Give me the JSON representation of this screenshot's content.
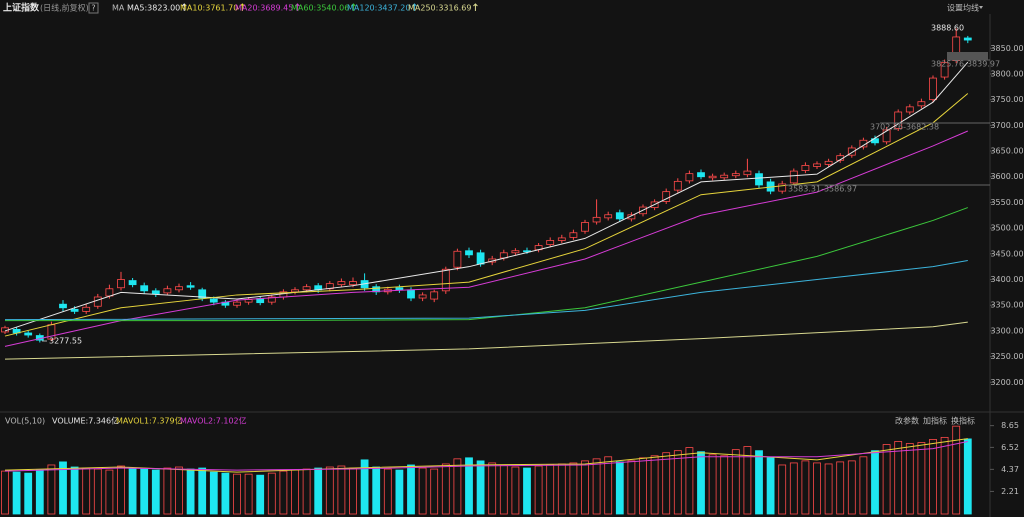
{
  "chart_data": [
    {
      "type": "candlestick",
      "title": "上证指数",
      "subtitle": "(日线,前复权)",
      "help": "?",
      "ma_label": "MA",
      "settings": "设置均线",
      "up_color": "#ff4a4a",
      "down_color": "#1ee6f0",
      "open": [
        3298,
        3303,
        3296,
        3291,
        3284,
        3352,
        3342,
        3338,
        3348,
        3368,
        3384,
        3398,
        3388,
        3378,
        3374,
        3380,
        3388,
        3380,
        3362,
        3356,
        3350,
        3356,
        3363,
        3356,
        3366,
        3376,
        3380,
        3388,
        3382,
        3390,
        3390,
        3398,
        3386,
        3376,
        3384,
        3380,
        3364,
        3362,
        3378,
        3424,
        3456,
        3452,
        3434,
        3442,
        3452,
        3456,
        3458,
        3468,
        3476,
        3482,
        3494,
        3512,
        3520,
        3530,
        3518,
        3528,
        3540,
        3552,
        3574,
        3592,
        3608,
        3598,
        3598,
        3602,
        3604,
        3606,
        3590,
        3572,
        3588,
        3612,
        3620,
        3624,
        3632,
        3642,
        3658,
        3674,
        3668,
        3694,
        3726,
        3738,
        3750,
        3794,
        3826,
        3870
      ],
      "high": [
        3310,
        3307,
        3300,
        3295,
        3318,
        3360,
        3348,
        3352,
        3372,
        3390,
        3415,
        3403,
        3394,
        3383,
        3388,
        3392,
        3395,
        3384,
        3367,
        3360,
        3360,
        3366,
        3368,
        3371,
        3381,
        3385,
        3391,
        3393,
        3397,
        3402,
        3404,
        3412,
        3391,
        3386,
        3390,
        3385,
        3375,
        3380,
        3425,
        3460,
        3462,
        3458,
        3446,
        3458,
        3461,
        3462,
        3471,
        3482,
        3487,
        3497,
        3516,
        3556,
        3532,
        3536,
        3531,
        3546,
        3556,
        3577,
        3597,
        3612,
        3614,
        3606,
        3608,
        3612,
        3635,
        3612,
        3596,
        3592,
        3616,
        3628,
        3630,
        3635,
        3646,
        3661,
        3676,
        3680,
        3697,
        3731,
        3741,
        3752,
        3797,
        3828,
        3888.6,
        3874
      ],
      "low": [
        3294,
        3291,
        3287,
        3277.55,
        3280,
        3338,
        3333,
        3333,
        3343,
        3363,
        3379,
        3385,
        3372,
        3366,
        3369,
        3375,
        3380,
        3358,
        3350,
        3345,
        3345,
        3351,
        3350,
        3351,
        3361,
        3371,
        3375,
        3374,
        3377,
        3385,
        3385,
        3378,
        3370,
        3371,
        3374,
        3358,
        3358,
        3356,
        3372,
        3418,
        3442,
        3425,
        3428,
        3437,
        3447,
        3450,
        3453,
        3463,
        3471,
        3477,
        3489,
        3507,
        3515,
        3512,
        3513,
        3523,
        3535,
        3547,
        3569,
        3587,
        3595,
        3593,
        3593,
        3597,
        3599,
        3578,
        3566,
        3567,
        3583,
        3607,
        3615,
        3619,
        3627,
        3637,
        3653,
        3661,
        3663,
        3689,
        3721,
        3733,
        3745,
        3789,
        3821,
        3860
      ],
      "close": [
        3306,
        3296,
        3292,
        3282,
        3312,
        3345,
        3338,
        3346,
        3366,
        3382,
        3400,
        3390,
        3378,
        3372,
        3382,
        3386,
        3385,
        3364,
        3356,
        3350,
        3356,
        3361,
        3355,
        3366,
        3376,
        3380,
        3386,
        3380,
        3392,
        3396,
        3396,
        3384,
        3376,
        3381,
        3380,
        3364,
        3370,
        3376,
        3420,
        3455,
        3448,
        3430,
        3440,
        3452,
        3456,
        3455,
        3466,
        3476,
        3481,
        3491,
        3511,
        3521,
        3526,
        3518,
        3526,
        3541,
        3551,
        3571,
        3591,
        3606,
        3600,
        3601,
        3603,
        3606,
        3611,
        3584,
        3572,
        3586,
        3611,
        3622,
        3625,
        3630,
        3641,
        3656,
        3671,
        3666,
        3691,
        3726,
        3736,
        3746,
        3792,
        3822,
        3872,
        3866
      ],
      "series": [
        {
          "name": "MA5:3823.00",
          "color": "#e8e8e8",
          "x": [
            0,
            10,
            20,
            30,
            40,
            50,
            60,
            70,
            80,
            83
          ],
          "values": [
            3300,
            3375,
            3362,
            3388,
            3425,
            3480,
            3590,
            3605,
            3745,
            3823
          ]
        },
        {
          "name": "MA10:3761.70",
          "color": "#e6d43c",
          "x": [
            0,
            10,
            20,
            30,
            40,
            50,
            60,
            70,
            80,
            83
          ],
          "values": [
            3290,
            3345,
            3370,
            3380,
            3395,
            3460,
            3565,
            3590,
            3705,
            3762
          ]
        },
        {
          "name": "MA20:3689.45",
          "color": "#d63cd6",
          "x": [
            0,
            10,
            20,
            30,
            40,
            50,
            60,
            70,
            80,
            83
          ],
          "values": [
            3270,
            3320,
            3360,
            3375,
            3385,
            3440,
            3525,
            3570,
            3660,
            3689
          ]
        },
        {
          "name": "MA60:3540.06",
          "color": "#3cc83c",
          "x": [
            0,
            20,
            40,
            50,
            60,
            70,
            80,
            83
          ],
          "values": [
            3320,
            3320,
            3322,
            3345,
            3395,
            3445,
            3515,
            3540
          ]
        },
        {
          "name": "MA120:3437.20",
          "color": "#3cb4dc",
          "x": [
            0,
            40,
            50,
            60,
            70,
            80,
            83
          ],
          "values": [
            3322,
            3325,
            3340,
            3375,
            3400,
            3425,
            3437
          ]
        },
        {
          "name": "MA250:3316.69",
          "color": "#d8d890",
          "x": [
            0,
            40,
            60,
            80,
            83
          ],
          "values": [
            3245,
            3265,
            3285,
            3308,
            3317
          ]
        }
      ],
      "annotations": [
        "3888.60",
        "3825.76-3839.97",
        "3702.26-3682.38",
        "3583.31-3586.97",
        "3277.55"
      ],
      "ylim": [
        3150,
        3905
      ],
      "yticks": [
        {
          "value": 3200,
          "label": "3200.00"
        },
        {
          "value": 3250,
          "label": "3250.00"
        },
        {
          "value": 3300,
          "label": "3300.00"
        },
        {
          "value": 3350,
          "label": "3350.00"
        },
        {
          "value": 3400,
          "label": "3400.00"
        },
        {
          "value": 3450,
          "label": "3450.00"
        },
        {
          "value": 3500,
          "label": "3500.00"
        },
        {
          "value": 3550,
          "label": "3550.00"
        },
        {
          "value": 3600,
          "label": "3600.00"
        },
        {
          "value": 3650,
          "label": "3650.00"
        },
        {
          "value": 3700,
          "label": "3700.00"
        },
        {
          "value": 3750,
          "label": "3750.00"
        },
        {
          "value": 3800,
          "label": "3800.00"
        },
        {
          "value": 3850,
          "label": "3850.00"
        }
      ]
    },
    {
      "type": "bar",
      "title": "VOL(5,10)",
      "latest": "VOLUME:7.346亿",
      "buttons": [
        "改参数",
        "加指标",
        "换指标"
      ],
      "values": [
        4.2,
        4.1,
        4.0,
        4.3,
        4.8,
        5.1,
        4.6,
        4.5,
        4.4,
        4.3,
        4.7,
        4.5,
        4.4,
        4.3,
        4.5,
        4.6,
        4.4,
        4.5,
        4.1,
        4.0,
        3.9,
        3.9,
        3.8,
        4.0,
        4.2,
        4.3,
        4.4,
        4.5,
        4.6,
        4.7,
        4.5,
        5.3,
        4.6,
        4.4,
        4.3,
        4.8,
        4.5,
        4.4,
        4.9,
        5.4,
        5.5,
        5.2,
        5.0,
        4.8,
        4.6,
        4.5,
        4.7,
        4.8,
        4.9,
        5.0,
        5.2,
        5.4,
        5.6,
        5.1,
        5.2,
        5.5,
        5.7,
        6.0,
        6.2,
        6.5,
        6.1,
        5.8,
        5.7,
        6.3,
        6.6,
        6.2,
        5.5,
        4.8,
        5.0,
        5.2,
        5.0,
        4.9,
        5.1,
        5.2,
        5.6,
        6.2,
        6.8,
        7.1,
        6.9,
        7.0,
        7.3,
        7.5,
        8.6,
        7.35
      ],
      "series": [
        {
          "name": "MAVOL1:7.379亿",
          "color": "#e6d43c",
          "x": [
            0,
            10,
            20,
            30,
            40,
            50,
            60,
            70,
            80,
            83
          ],
          "values": [
            4.3,
            4.6,
            4.1,
            4.5,
            4.8,
            4.9,
            6.0,
            5.3,
            6.9,
            7.379
          ]
        },
        {
          "name": "MAVOL2:7.102亿",
          "color": "#d63cd6",
          "x": [
            0,
            10,
            20,
            30,
            40,
            50,
            60,
            70,
            80,
            83
          ],
          "values": [
            4.2,
            4.5,
            4.3,
            4.4,
            4.7,
            4.8,
            5.6,
            5.6,
            6.4,
            7.102
          ]
        }
      ],
      "ylim": [
        0,
        9.3
      ],
      "yticks": [
        2.21,
        4.37,
        6.52,
        8.65
      ]
    }
  ]
}
